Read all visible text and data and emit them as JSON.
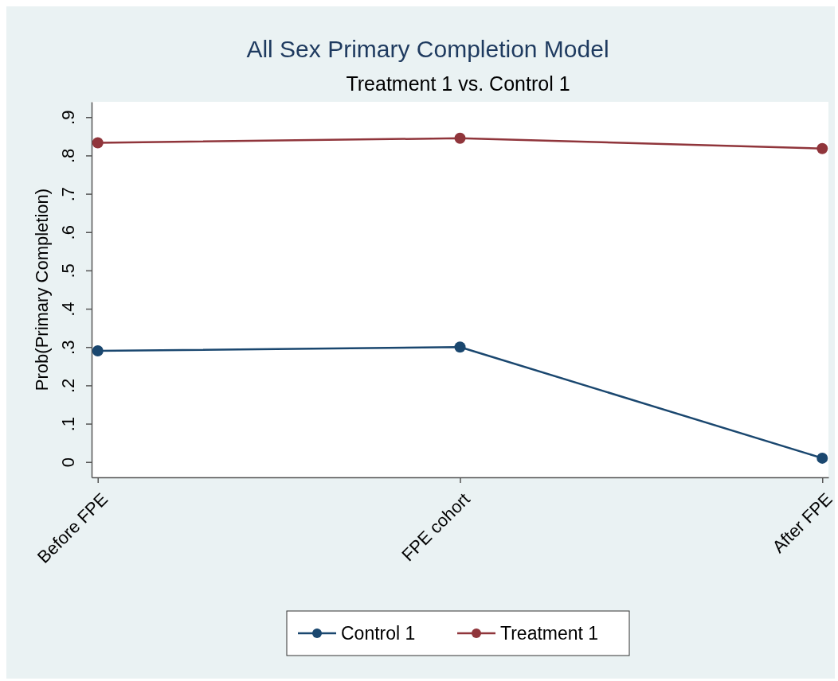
{
  "chart_data": {
    "type": "line",
    "title": "All Sex Primary Completion Model",
    "subtitle": "Treatment 1 vs. Control 1",
    "ylabel": "Prob(Primary Completion)",
    "categories": [
      "Before FPE",
      "FPE cohort",
      "After FPE"
    ],
    "series": [
      {
        "name": "Control 1",
        "color": "#1a476f",
        "values": [
          0.29,
          0.3,
          0.01
        ]
      },
      {
        "name": "Treatment 1",
        "color": "#90353b",
        "values": [
          0.833,
          0.845,
          0.818
        ]
      }
    ],
    "ylim": [
      -0.04,
      0.94
    ],
    "yticks": [
      {
        "value": 0,
        "label": "0"
      },
      {
        "value": 0.1,
        "label": ".1"
      },
      {
        "value": 0.2,
        "label": ".2"
      },
      {
        "value": 0.3,
        "label": ".3"
      },
      {
        "value": 0.4,
        "label": ".4"
      },
      {
        "value": 0.5,
        "label": ".5"
      },
      {
        "value": 0.6,
        "label": ".6"
      },
      {
        "value": 0.7,
        "label": ".7"
      },
      {
        "value": 0.8,
        "label": ".8"
      },
      {
        "value": 0.9,
        "label": ".9"
      }
    ],
    "grid": false,
    "legend": "bottom",
    "marker": "circle",
    "line_style": "solid"
  }
}
